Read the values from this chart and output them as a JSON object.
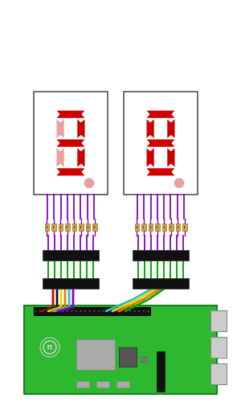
{
  "bg_color": "#ffffff",
  "board_color": "#2db830",
  "seg_color_bright": "#cc0000",
  "seg_color_dim": "#e8a0a0",
  "purple": "#8800bb",
  "green_wire": "#00aa00",
  "wire_colors_left": [
    "#cc0000",
    "#111111",
    "#dddd00",
    "#ee8800",
    "#33bbcc",
    "#8800bb"
  ],
  "wire_colors_right": [
    "#33bbcc",
    "#dddd00",
    "#ee8800",
    "#00aa00"
  ],
  "resistor_body": "#c8a850",
  "ic_color": "#111111"
}
